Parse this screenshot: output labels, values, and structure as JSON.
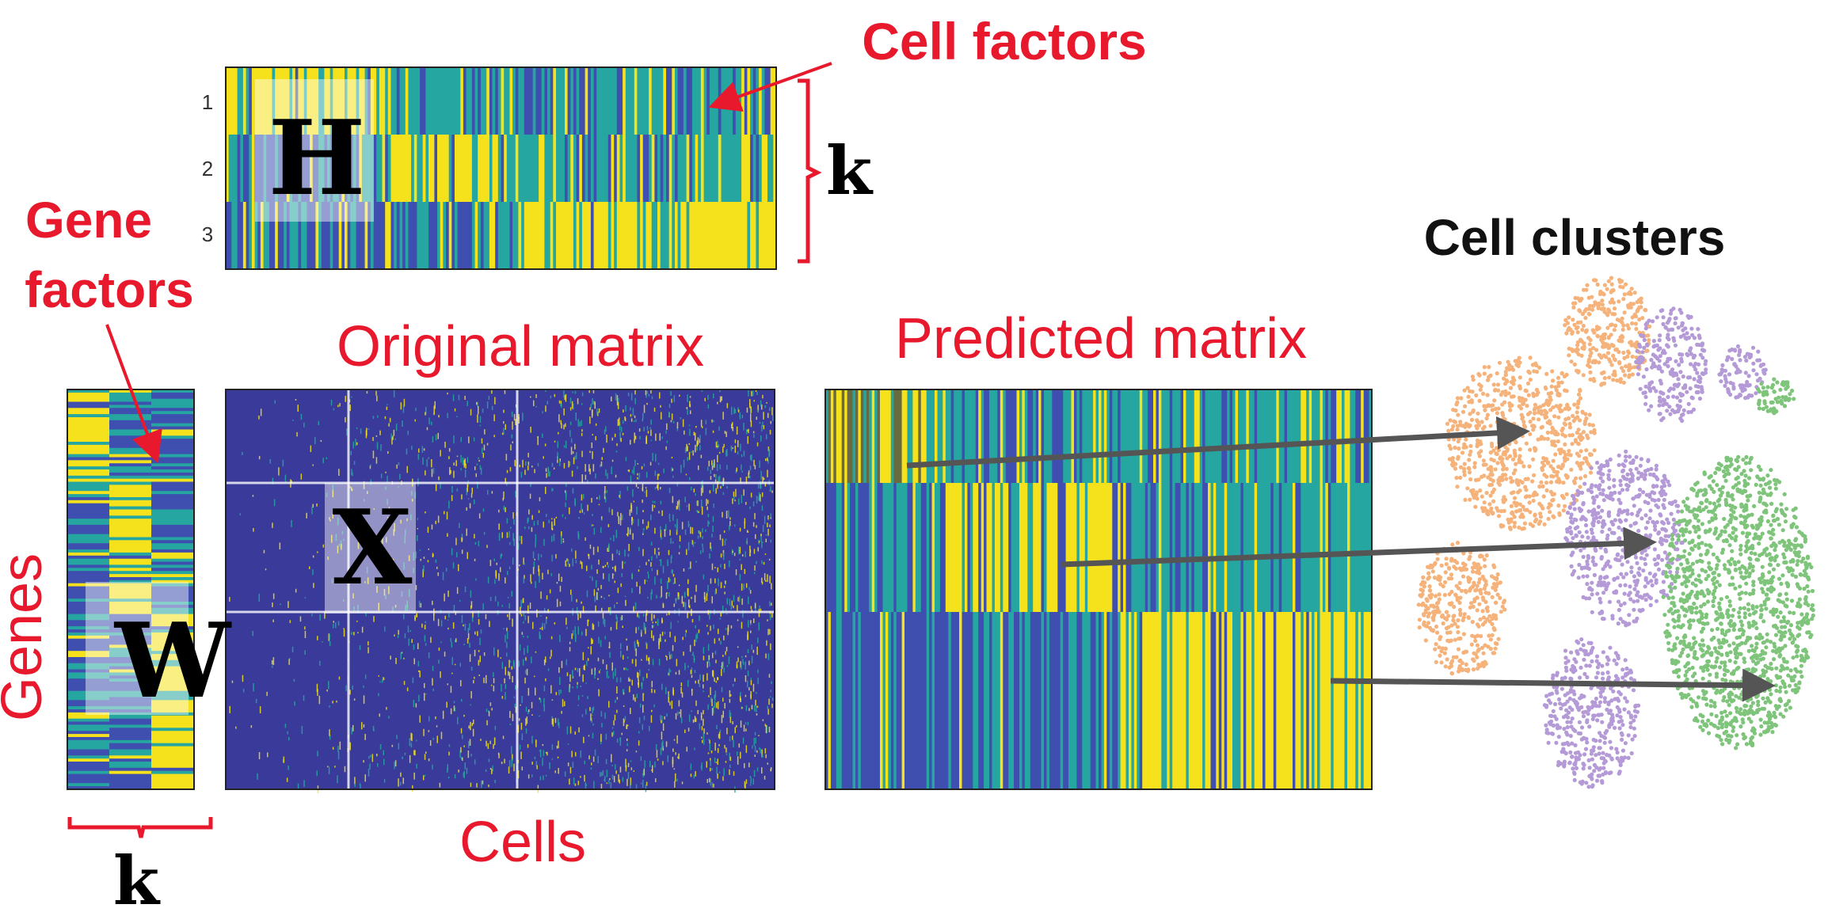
{
  "labels": {
    "cell_factors": "Cell factors",
    "gene_factors_line1": "Gene",
    "gene_factors_line2": "factors",
    "cell_clusters": "Cell clusters",
    "original_matrix": "Original matrix",
    "predicted_matrix": "Predicted matrix",
    "genes": "Genes",
    "cells": "Cells",
    "k_top": "k",
    "k_bottom": "k",
    "H": "H",
    "W": "W",
    "X": "X"
  },
  "h_matrix_rows": [
    "1",
    "2",
    "3"
  ],
  "colors": {
    "label_red": "#e8192c",
    "yellow": "#f5e21c",
    "teal": "#26a6a0",
    "blue": "#3f4fb0",
    "navy": "#3a3a9a",
    "orange_cluster": "#f5b27a",
    "purple_cluster": "#b49ad6",
    "green_cluster": "#7ec47a",
    "arrow_gray": "#555555"
  }
}
